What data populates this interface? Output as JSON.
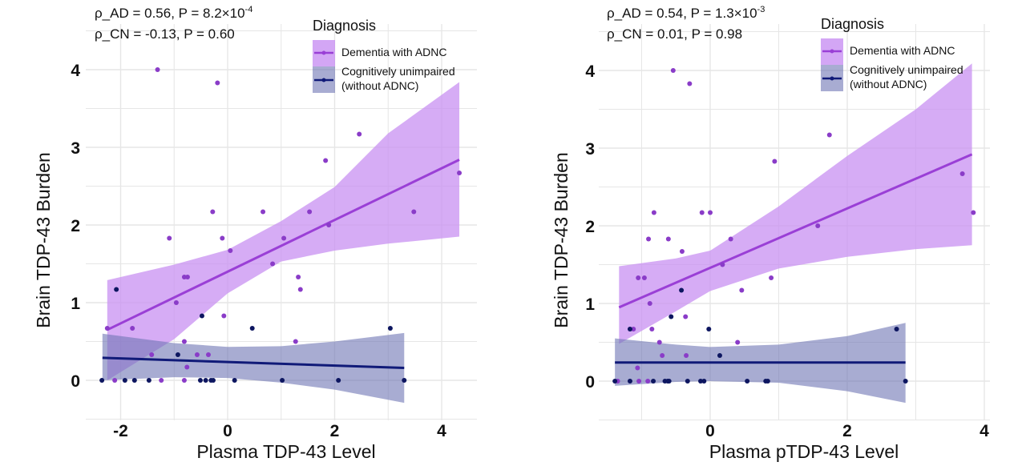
{
  "colors": {
    "ad_line": "#9a3fd6",
    "ad_band": "#c890f2",
    "ad_point": "#8a3cc8",
    "cn_line": "#101a78",
    "cn_band": "#6e74b4",
    "cn_point": "#0d1660",
    "grid": "#e6e6e6"
  },
  "legend": {
    "title": "Diagnosis",
    "ad_label": "Dementia with ADNC",
    "cn_label_line1": "Cognitively unimpaired",
    "cn_label_line2": "(without ADNC)"
  },
  "chart_data": [
    {
      "type": "scatter",
      "xlabel": "Plasma TDP-43 Level",
      "ylabel": "Brain TDP-43 Burden",
      "xlim": [
        -2.65,
        4.66
      ],
      "ylim": [
        -0.57,
        4.6
      ],
      "xticks": [
        "-2",
        "0",
        "2",
        "4"
      ],
      "xtick_values": [
        -2,
        0,
        2,
        4
      ],
      "yticks": [
        "0",
        "1",
        "2",
        "3",
        "4"
      ],
      "ytick_values": [
        0,
        1,
        2,
        3,
        4
      ],
      "grid": true,
      "legend_position": "top-right",
      "annotation": {
        "ad_text": "ρ_AD = 0.56, P = 8.2×10",
        "ad_exp": "-4",
        "cn_text": "ρ_CN = -0.13, P = 0.60"
      },
      "series": [
        {
          "name": "Dementia with ADNC",
          "points": [
            [
              -1.31,
              4.0
            ],
            [
              -0.19,
              3.83
            ],
            [
              2.46,
              3.17
            ],
            [
              1.83,
              2.83
            ],
            [
              4.33,
              2.67
            ],
            [
              -0.28,
              2.17
            ],
            [
              0.66,
              2.17
            ],
            [
              1.53,
              2.17
            ],
            [
              3.48,
              2.17
            ],
            [
              1.89,
              2.0
            ],
            [
              -1.09,
              1.83
            ],
            [
              -0.1,
              1.83
            ],
            [
              1.05,
              1.83
            ],
            [
              0.05,
              1.67
            ],
            [
              0.84,
              1.5
            ],
            [
              -0.81,
              1.33
            ],
            [
              -0.75,
              1.33
            ],
            [
              1.32,
              1.33
            ],
            [
              1.36,
              1.17
            ],
            [
              -0.96,
              1.0
            ],
            [
              -0.07,
              0.83
            ],
            [
              -2.25,
              0.67
            ],
            [
              -1.78,
              0.67
            ],
            [
              -0.81,
              0.5
            ],
            [
              1.27,
              0.5
            ],
            [
              -1.42,
              0.33
            ],
            [
              -0.57,
              0.33
            ],
            [
              -0.36,
              0.33
            ],
            [
              -0.76,
              0.17
            ],
            [
              -2.11,
              0
            ],
            [
              -1.24,
              0
            ],
            [
              -0.81,
              0
            ]
          ],
          "fit": [
            [
              -2.25,
              0.65
            ],
            [
              4.33,
              2.84
            ]
          ],
          "ci_band": [
            [
              -2.25,
              0.0,
              1.29
            ],
            [
              -1.0,
              0.53,
              1.49
            ],
            [
              0,
              1.12,
              1.68
            ],
            [
              1,
              1.53,
              2.05
            ],
            [
              2,
              1.67,
              2.49
            ],
            [
              3,
              1.76,
              3.18
            ],
            [
              4.33,
              1.85,
              3.84
            ]
          ]
        },
        {
          "name": "Cognitively unimpaired (without ADNC)",
          "points": [
            [
              -2.08,
              1.17
            ],
            [
              -0.48,
              0.83
            ],
            [
              0.46,
              0.67
            ],
            [
              3.04,
              0.67
            ],
            [
              -0.93,
              0.33
            ],
            [
              -2.35,
              0
            ],
            [
              -1.92,
              0
            ],
            [
              -1.74,
              0
            ],
            [
              -1.47,
              0
            ],
            [
              -0.51,
              0
            ],
            [
              -0.41,
              0
            ],
            [
              -0.31,
              0
            ],
            [
              -0.27,
              0
            ],
            [
              0.13,
              0
            ],
            [
              1.02,
              0
            ],
            [
              2.07,
              0
            ],
            [
              3.3,
              0
            ]
          ],
          "fit": [
            [
              -2.34,
              0.29
            ],
            [
              3.3,
              0.16
            ]
          ],
          "ci_band": [
            [
              -2.34,
              0.0,
              0.6
            ],
            [
              -1,
              0.04,
              0.48
            ],
            [
              0,
              0.03,
              0.43
            ],
            [
              1,
              -0.03,
              0.44
            ],
            [
              2,
              -0.12,
              0.5
            ],
            [
              3.3,
              -0.29,
              0.61
            ]
          ]
        }
      ]
    },
    {
      "type": "scatter",
      "xlabel": "Plasma pTDP-43 Level",
      "ylabel": "Brain TDP-43 Burden",
      "xlim": [
        -1.63,
        4.08
      ],
      "ylim": [
        -0.57,
        4.6
      ],
      "xticks": [
        "0",
        "2",
        "4"
      ],
      "xtick_values": [
        0,
        2,
        4
      ],
      "yticks": [
        "0",
        "1",
        "2",
        "3",
        "4"
      ],
      "ytick_values": [
        0,
        1,
        2,
        3,
        4
      ],
      "grid": true,
      "legend_position": "top-right",
      "annotation": {
        "ad_text": "ρ_AD = 0.54, P = 1.3×10",
        "ad_exp": "-3",
        "cn_text": "ρ_CN = 0.01, P = 0.98"
      },
      "series": [
        {
          "name": "Dementia with ADNC",
          "points": [
            [
              -0.54,
              4.0
            ],
            [
              -0.3,
              3.83
            ],
            [
              1.74,
              3.17
            ],
            [
              0.94,
              2.83
            ],
            [
              3.68,
              2.67
            ],
            [
              -0.82,
              2.17
            ],
            [
              -0.12,
              2.17
            ],
            [
              0.0,
              2.17
            ],
            [
              3.84,
              2.17
            ],
            [
              1.57,
              2.0
            ],
            [
              -0.9,
              1.83
            ],
            [
              -0.61,
              1.83
            ],
            [
              0.3,
              1.83
            ],
            [
              -0.41,
              1.67
            ],
            [
              0.18,
              1.5
            ],
            [
              -1.05,
              1.33
            ],
            [
              -0.96,
              1.33
            ],
            [
              0.89,
              1.33
            ],
            [
              0.46,
              1.17
            ],
            [
              -0.88,
              1.0
            ],
            [
              -0.36,
              0.83
            ],
            [
              -1.12,
              0.67
            ],
            [
              -0.85,
              0.67
            ],
            [
              -0.74,
              0.5
            ],
            [
              0.4,
              0.5
            ],
            [
              -0.7,
              0.33
            ],
            [
              -0.35,
              0.33
            ],
            [
              -1.06,
              0.17
            ],
            [
              -1.35,
              0
            ],
            [
              -1.04,
              0
            ],
            [
              -0.91,
              0
            ]
          ],
          "fit": [
            [
              -1.33,
              0.95
            ],
            [
              3.82,
              2.92
            ]
          ],
          "ci_band": [
            [
              -1.33,
              0.48,
              1.48
            ],
            [
              -0.5,
              0.9,
              1.58
            ],
            [
              0,
              1.16,
              1.68
            ],
            [
              1,
              1.45,
              2.25
            ],
            [
              2,
              1.6,
              2.9
            ],
            [
              3,
              1.7,
              3.5
            ],
            [
              3.82,
              1.75,
              4.09
            ]
          ]
        },
        {
          "name": "Cognitively unimpaired (without ADNC)",
          "points": [
            [
              -0.42,
              1.17
            ],
            [
              -0.57,
              0.83
            ],
            [
              -1.17,
              0.67
            ],
            [
              -0.02,
              0.67
            ],
            [
              2.72,
              0.67
            ],
            [
              0.14,
              0.33
            ],
            [
              -1.39,
              0
            ],
            [
              -1.17,
              0
            ],
            [
              -0.83,
              0
            ],
            [
              -0.66,
              0
            ],
            [
              -0.62,
              0
            ],
            [
              -0.6,
              0
            ],
            [
              -0.33,
              0
            ],
            [
              -0.14,
              0
            ],
            [
              -0.09,
              0
            ],
            [
              0.54,
              0
            ],
            [
              0.81,
              0
            ],
            [
              0.84,
              0
            ],
            [
              2.85,
              0
            ]
          ],
          "fit": [
            [
              -1.39,
              0.24
            ],
            [
              2.85,
              0.24
            ]
          ],
          "ci_band": [
            [
              -1.39,
              -0.06,
              0.55
            ],
            [
              -0.5,
              -0.01,
              0.47
            ],
            [
              0,
              0.0,
              0.44
            ],
            [
              1,
              -0.02,
              0.47
            ],
            [
              2,
              -0.13,
              0.58
            ],
            [
              2.85,
              -0.28,
              0.75
            ]
          ]
        }
      ]
    }
  ]
}
